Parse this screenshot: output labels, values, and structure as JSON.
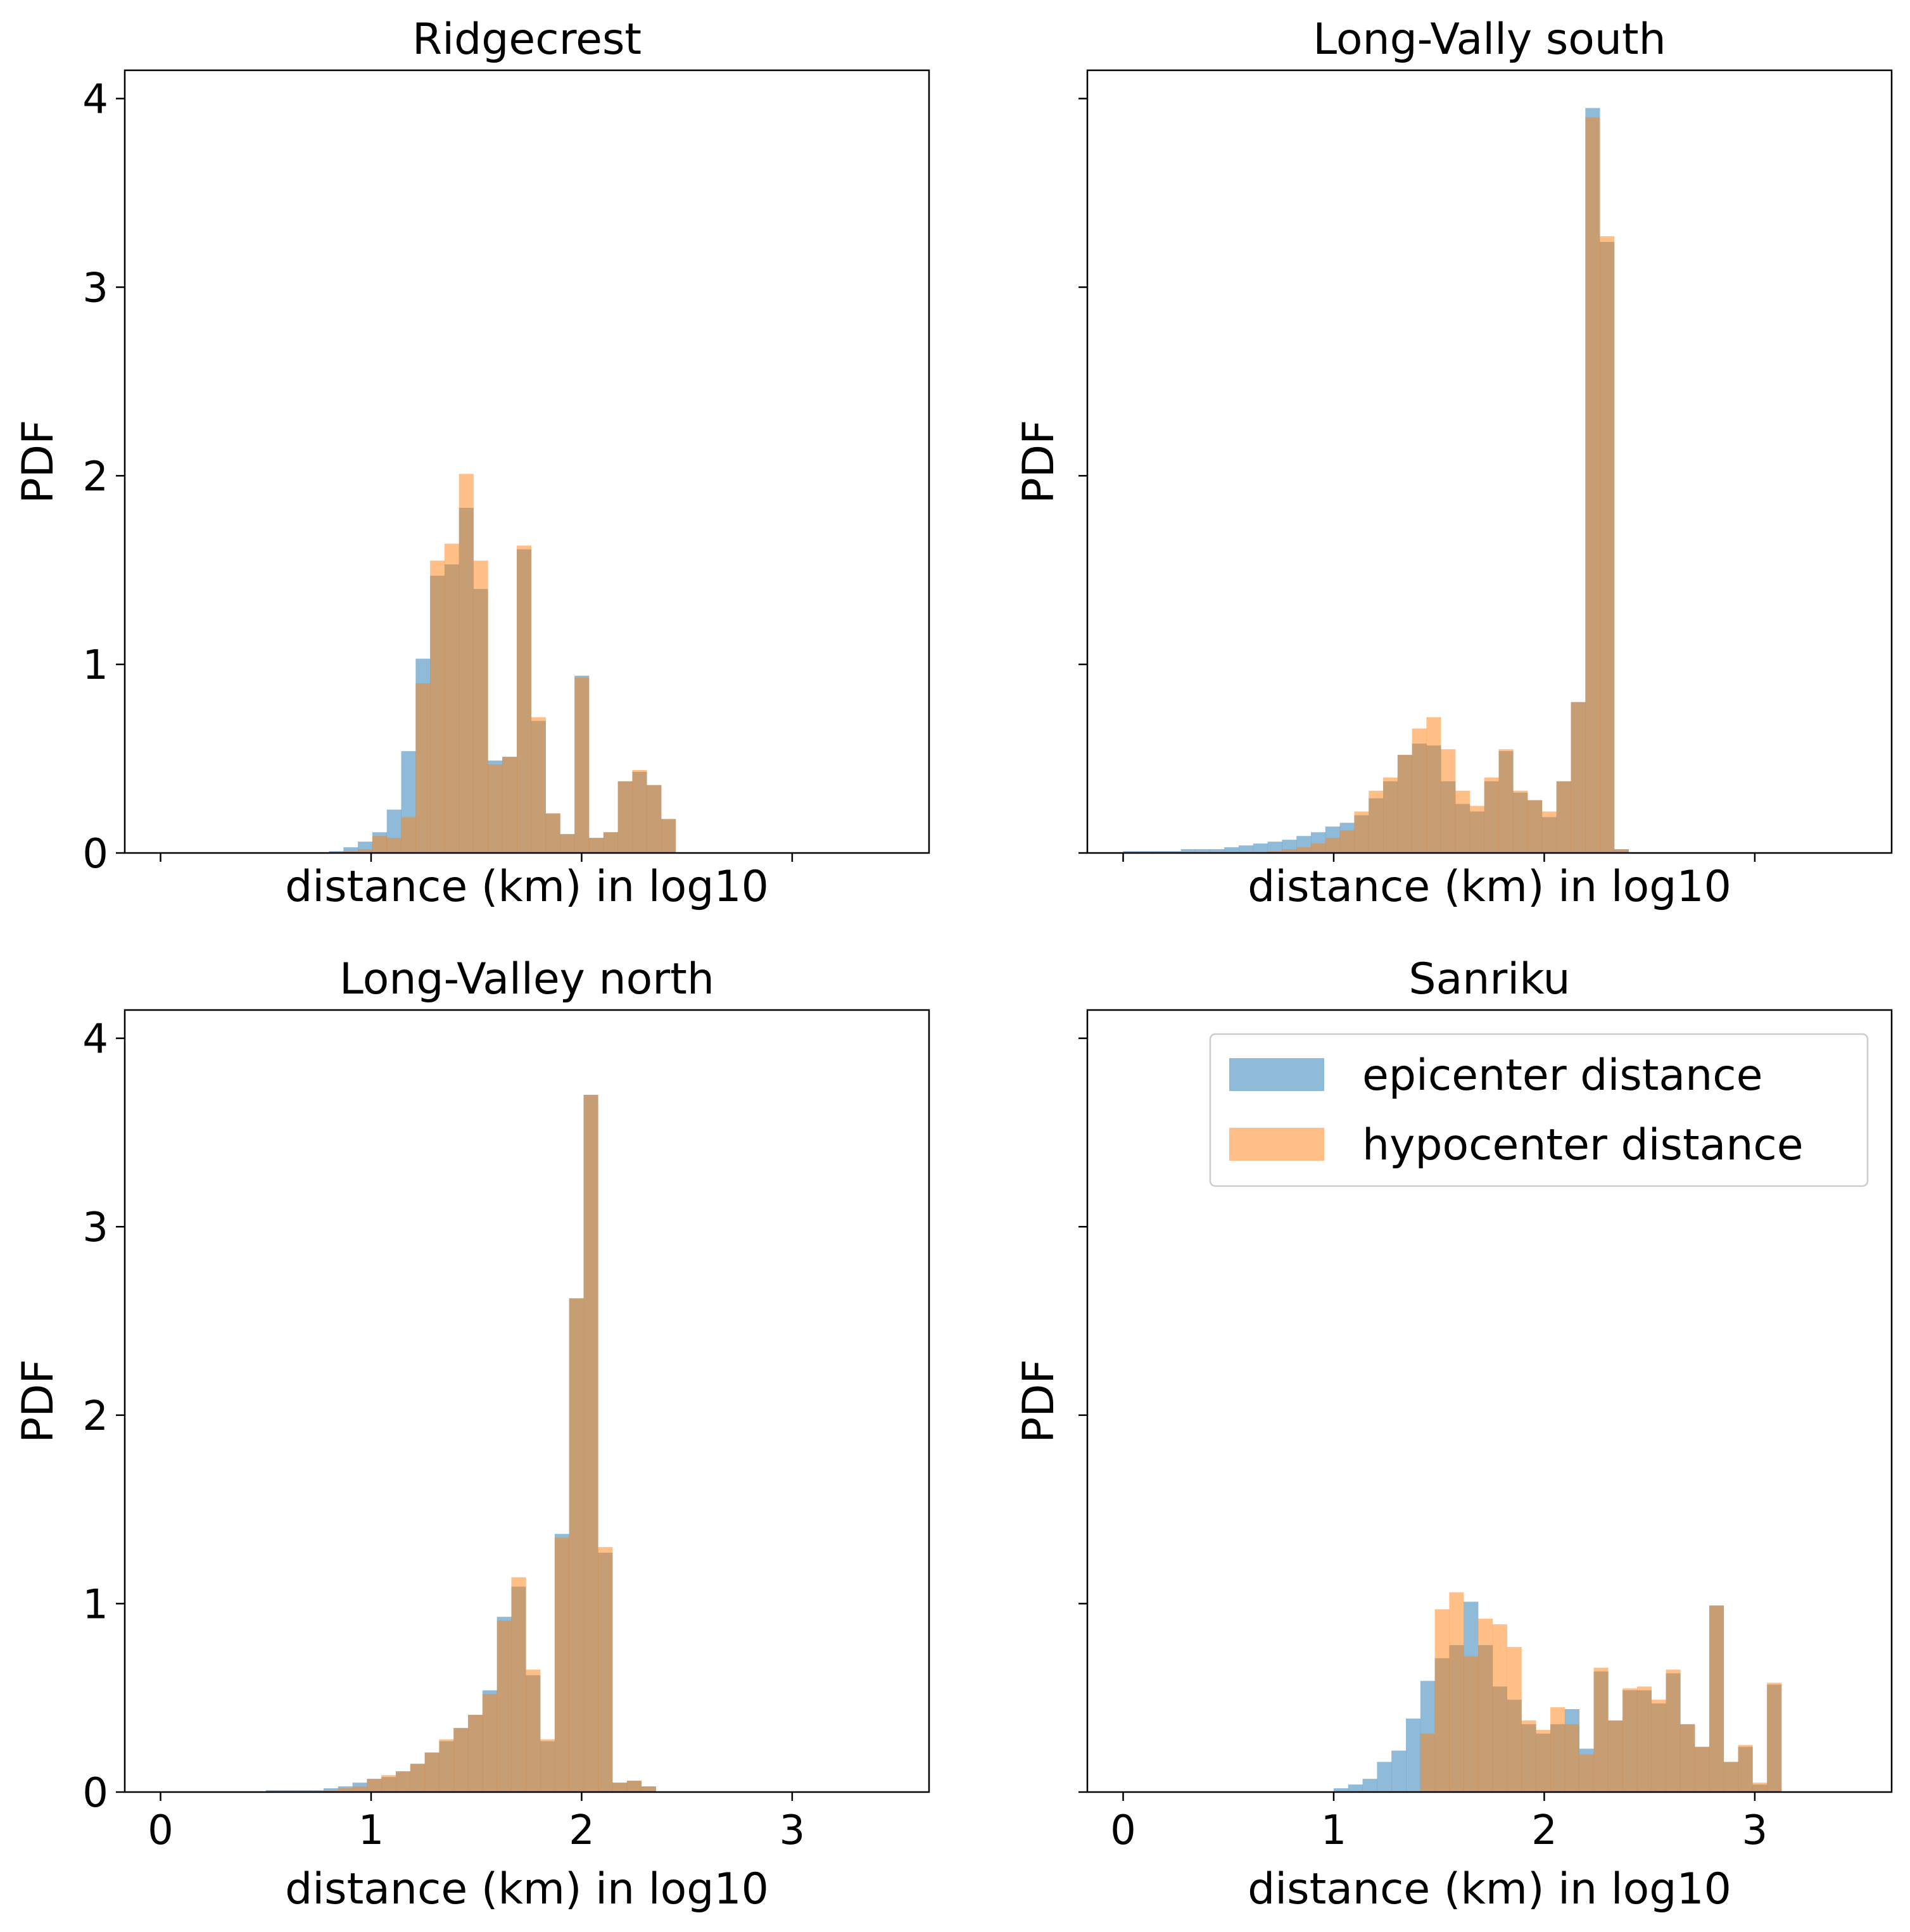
{
  "colors": {
    "epicenter": "#1f77b4",
    "hypocenter": "#ff7f0e",
    "alpha": 0.5
  },
  "legend": {
    "location": "upper right (Sanriku panel)",
    "entries": [
      "epicenter distance",
      "hypocenter distance"
    ]
  },
  "chart_data": [
    {
      "type": "bar",
      "title": "Ridgecrest",
      "xlabel": "distance (km) in log10",
      "ylabel": "PDF",
      "xlim": [
        -0.17,
        3.65
      ],
      "ylim": [
        0,
        4.15
      ],
      "xticks": [
        0,
        1,
        2,
        3
      ],
      "yticks": [
        0,
        1,
        2,
        3,
        4
      ],
      "show_xticklabels": false,
      "show_yticklabels": true,
      "bin_start": 0.8,
      "bin_width": 0.0686,
      "series": [
        {
          "name": "epicenter distance",
          "values": [
            0.01,
            0.03,
            0.06,
            0.11,
            0.23,
            0.54,
            1.03,
            1.47,
            1.53,
            1.83,
            1.4,
            0.49,
            0.51,
            1.61,
            0.7,
            0.21,
            0.1,
            0.94,
            0.08,
            0.11,
            0.38,
            0.43,
            0.36,
            0.18
          ]
        },
        {
          "name": "hypocenter distance",
          "values": [
            0.0,
            0.01,
            0.02,
            0.09,
            0.08,
            0.19,
            0.9,
            1.55,
            1.64,
            2.01,
            1.55,
            0.47,
            0.51,
            1.63,
            0.72,
            0.21,
            0.1,
            0.93,
            0.08,
            0.11,
            0.38,
            0.44,
            0.36,
            0.18
          ]
        }
      ]
    },
    {
      "type": "bar",
      "title": "Long-Vally south",
      "xlabel": "distance (km) in log10",
      "ylabel": "PDF",
      "xlim": [
        -0.17,
        3.65
      ],
      "ylim": [
        0,
        4.15
      ],
      "xticks": [
        0,
        1,
        2,
        3
      ],
      "yticks": [
        0,
        1,
        2,
        3,
        4
      ],
      "show_xticklabels": false,
      "show_yticklabels": false,
      "bin_start": 0.0,
      "bin_width": 0.0686,
      "series": [
        {
          "name": "epicenter distance",
          "values": [
            0.01,
            0.01,
            0.01,
            0.01,
            0.02,
            0.02,
            0.02,
            0.03,
            0.04,
            0.05,
            0.06,
            0.07,
            0.09,
            0.11,
            0.14,
            0.16,
            0.2,
            0.29,
            0.38,
            0.52,
            0.58,
            0.57,
            0.38,
            0.26,
            0.22,
            0.38,
            0.54,
            0.32,
            0.28,
            0.19,
            0.38,
            0.8,
            3.95,
            3.24,
            0.02
          ]
        },
        {
          "name": "hypocenter distance",
          "values": [
            0.0,
            0.0,
            0.0,
            0.0,
            0.0,
            0.0,
            0.0,
            0.0,
            0.0,
            0.0,
            0.01,
            0.02,
            0.03,
            0.05,
            0.08,
            0.12,
            0.22,
            0.33,
            0.4,
            0.52,
            0.66,
            0.72,
            0.55,
            0.33,
            0.25,
            0.4,
            0.55,
            0.33,
            0.28,
            0.22,
            0.38,
            0.8,
            3.9,
            3.27,
            0.02
          ]
        }
      ]
    },
    {
      "type": "bar",
      "title": "Long-Valley north",
      "xlabel": "distance (km) in log10",
      "ylabel": "PDF",
      "xlim": [
        -0.17,
        3.65
      ],
      "ylim": [
        0,
        4.15
      ],
      "xticks": [
        0,
        1,
        2,
        3
      ],
      "yticks": [
        0,
        1,
        2,
        3,
        4
      ],
      "show_xticklabels": true,
      "show_yticklabels": true,
      "bin_start": 0.5,
      "bin_width": 0.0686,
      "series": [
        {
          "name": "epicenter distance",
          "values": [
            0.01,
            0.01,
            0.01,
            0.01,
            0.02,
            0.03,
            0.05,
            0.07,
            0.08,
            0.11,
            0.15,
            0.21,
            0.27,
            0.34,
            0.41,
            0.54,
            0.93,
            1.09,
            0.62,
            0.27,
            1.37,
            2.62,
            3.7,
            1.27,
            0.05,
            0.06,
            0.03
          ]
        },
        {
          "name": "hypocenter distance",
          "values": [
            0.0,
            0.0,
            0.0,
            0.0,
            0.01,
            0.02,
            0.03,
            0.07,
            0.09,
            0.11,
            0.15,
            0.21,
            0.28,
            0.34,
            0.41,
            0.52,
            0.91,
            1.14,
            0.65,
            0.28,
            1.35,
            2.62,
            3.7,
            1.3,
            0.05,
            0.06,
            0.03
          ]
        }
      ]
    },
    {
      "type": "bar",
      "title": "Sanriku",
      "xlabel": "distance (km) in log10",
      "ylabel": "PDF",
      "xlim": [
        -0.17,
        3.65
      ],
      "ylim": [
        0,
        4.15
      ],
      "xticks": [
        0,
        1,
        2,
        3
      ],
      "yticks": [
        0,
        1,
        2,
        3,
        4
      ],
      "show_xticklabels": true,
      "show_yticklabels": false,
      "bin_start": 1.0,
      "bin_width": 0.0686,
      "series": [
        {
          "name": "epicenter distance",
          "values": [
            0.02,
            0.04,
            0.07,
            0.16,
            0.22,
            0.39,
            0.59,
            0.71,
            0.78,
            1.01,
            0.78,
            0.56,
            0.49,
            0.36,
            0.31,
            0.36,
            0.44,
            0.23,
            0.64,
            0.38,
            0.54,
            0.54,
            0.47,
            0.63,
            0.36,
            0.24,
            0.99,
            0.16,
            0.24,
            0.04,
            0.57
          ]
        },
        {
          "name": "hypocenter distance",
          "values": [
            0.0,
            0.0,
            0.0,
            0.0,
            0.0,
            0.0,
            0.31,
            0.97,
            1.06,
            0.72,
            0.92,
            0.89,
            0.77,
            0.38,
            0.33,
            0.45,
            0.36,
            0.2,
            0.66,
            0.38,
            0.55,
            0.56,
            0.49,
            0.65,
            0.36,
            0.24,
            0.99,
            0.16,
            0.25,
            0.05,
            0.58
          ]
        }
      ]
    }
  ]
}
